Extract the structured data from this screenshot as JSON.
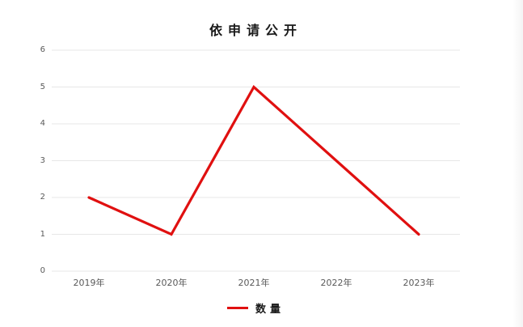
{
  "window": {
    "background": "#ffffff"
  },
  "chart_data": {
    "type": "line",
    "title": "依申请公开",
    "categories": [
      "2019年",
      "2020年",
      "2021年",
      "2022年",
      "2023年"
    ],
    "series": [
      {
        "name": "数量",
        "values": [
          2,
          1,
          5,
          3,
          1
        ],
        "color": "#e01010"
      }
    ],
    "ylim": [
      0,
      6
    ],
    "yticks": [
      0,
      1,
      2,
      3,
      4,
      5,
      6
    ],
    "grid": "horizontal-only",
    "gridline_color": "#e7e7e7",
    "axis_label_color": "#595959",
    "legend_position": "bottom",
    "legend_entries": [
      "数量"
    ]
  }
}
